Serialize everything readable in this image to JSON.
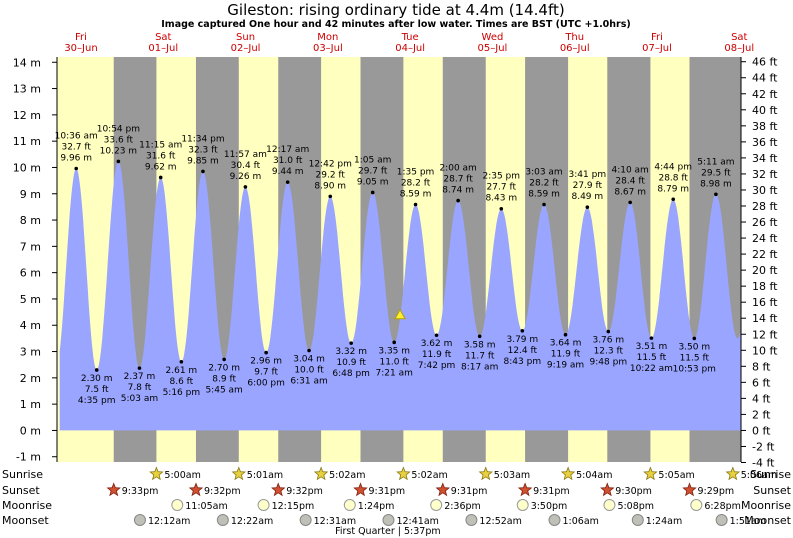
{
  "chart_data": {
    "type": "area",
    "title": "Gileston: rising  ordinary tide at 4.4m (14.4ft)",
    "subtitle": "Image captured One hour and 42 minutes after low water. Times are BST (UTC +1.0hrs)",
    "left_axis_unit": "m",
    "right_axis_unit": "ft",
    "ylim_m": [
      -1.2,
      14.2
    ],
    "left_ticks": [
      -1,
      0,
      1,
      2,
      3,
      4,
      5,
      6,
      7,
      8,
      9,
      10,
      11,
      12,
      13,
      14
    ],
    "right_ticks": [
      -4,
      -2,
      0,
      2,
      4,
      6,
      8,
      10,
      12,
      14,
      16,
      18,
      20,
      22,
      24,
      26,
      28,
      30,
      32,
      34,
      36,
      38,
      40,
      42,
      44,
      46
    ],
    "x_range_hours": [
      0,
      199.5
    ],
    "days": [
      {
        "dow": "Fri",
        "date": "30–Jun",
        "start_h": -5
      },
      {
        "dow": "Sat",
        "date": "01–Jul",
        "start_h": 19
      },
      {
        "dow": "Sun",
        "date": "02–Jul",
        "start_h": 43
      },
      {
        "dow": "Mon",
        "date": "03–Jul",
        "start_h": 67
      },
      {
        "dow": "Tue",
        "date": "04–Jul",
        "start_h": 91
      },
      {
        "dow": "Wed",
        "date": "05–Jul",
        "start_h": 115
      },
      {
        "dow": "Thu",
        "date": "06–Jul",
        "start_h": 139
      },
      {
        "dow": "Fri",
        "date": "07–Jul",
        "start_h": 163
      },
      {
        "dow": "Sat",
        "date": "08–Jul",
        "start_h": 187
      }
    ],
    "nights": [
      [
        16.55,
        29.0
      ],
      [
        40.53,
        53.02
      ],
      [
        64.53,
        77.03
      ],
      [
        88.52,
        101.03
      ],
      [
        112.52,
        125.05
      ],
      [
        136.52,
        149.07
      ],
      [
        160.5,
        173.08
      ],
      [
        184.48,
        199.5
      ]
    ],
    "tides": [
      {
        "type": "high",
        "h": 5.6,
        "time": "10:36 am",
        "ft": "32.7 ft",
        "m": "9.96 m",
        "v": 9.96
      },
      {
        "type": "low",
        "h": 11.58,
        "time": "4:35 pm",
        "ft": "7.5 ft",
        "m": "2.30 m",
        "v": 2.3
      },
      {
        "type": "high",
        "h": 17.9,
        "time": "10:54 pm",
        "ft": "33.6 ft",
        "m": "10.23 m",
        "v": 10.23
      },
      {
        "type": "low",
        "h": 24.05,
        "time": "5:03 am",
        "ft": "7.8 ft",
        "m": "2.37 m",
        "v": 2.37
      },
      {
        "type": "high",
        "h": 30.25,
        "time": "11:15 am",
        "ft": "31.6 ft",
        "m": "9.62 m",
        "v": 9.62
      },
      {
        "type": "low",
        "h": 36.27,
        "time": "5:16 pm",
        "ft": "8.6 ft",
        "m": "2.61 m",
        "v": 2.61
      },
      {
        "type": "high",
        "h": 42.57,
        "time": "11:34 pm",
        "ft": "32.3 ft",
        "m": "9.85 m",
        "v": 9.85
      },
      {
        "type": "low",
        "h": 48.75,
        "time": "5:45 am",
        "ft": "8.9 ft",
        "m": "2.70 m",
        "v": 2.7
      },
      {
        "type": "high",
        "h": 54.95,
        "time": "11:57 am",
        "ft": "30.4 ft",
        "m": "9.26 m",
        "v": 9.26
      },
      {
        "type": "low",
        "h": 61.0,
        "time": "6:00 pm",
        "ft": "9.7 ft",
        "m": "2.96 m",
        "v": 2.96
      },
      {
        "type": "high",
        "h": 67.28,
        "time": "12:17 am",
        "ft": "31.0 ft",
        "m": "9.44 m",
        "v": 9.44
      },
      {
        "type": "low",
        "h": 73.52,
        "time": "6:31 am",
        "ft": "10.0 ft",
        "m": "3.04 m",
        "v": 3.04
      },
      {
        "type": "high",
        "h": 79.7,
        "time": "12:42 pm",
        "ft": "29.2 ft",
        "m": "8.90 m",
        "v": 8.9
      },
      {
        "type": "low",
        "h": 85.8,
        "time": "6:48 pm",
        "ft": "10.9 ft",
        "m": "3.32 m",
        "v": 3.32
      },
      {
        "type": "high",
        "h": 92.08,
        "time": "1:05 am",
        "ft": "29.7 ft",
        "m": "9.05 m",
        "v": 9.05
      },
      {
        "type": "low",
        "h": 98.35,
        "time": "7:21 am",
        "ft": "11.0 ft",
        "m": "3.35 m",
        "v": 3.35
      },
      {
        "type": "high",
        "h": 104.58,
        "time": "1:35 pm",
        "ft": "28.2 ft",
        "m": "8.59 m",
        "v": 8.59
      },
      {
        "type": "low",
        "h": 110.7,
        "time": "7:42 pm",
        "ft": "11.9 ft",
        "m": "3.62 m",
        "v": 3.62
      },
      {
        "type": "high",
        "h": 117.0,
        "time": "2:00 am",
        "ft": "28.7 ft",
        "m": "8.74 m",
        "v": 8.74
      },
      {
        "type": "low",
        "h": 123.28,
        "time": "8:17 am",
        "ft": "11.7 ft",
        "m": "3.58 m",
        "v": 3.58
      },
      {
        "type": "high",
        "h": 129.58,
        "time": "2:35 pm",
        "ft": "27.7 ft",
        "m": "8.43 m",
        "v": 8.43
      },
      {
        "type": "low",
        "h": 135.72,
        "time": "8:43 pm",
        "ft": "12.4 ft",
        "m": "3.79 m",
        "v": 3.79
      },
      {
        "type": "high",
        "h": 142.05,
        "time": "3:03 am",
        "ft": "28.2 ft",
        "m": "8.59 m",
        "v": 8.59
      },
      {
        "type": "low",
        "h": 148.32,
        "time": "9:19 am",
        "ft": "11.9 ft",
        "m": "3.64 m",
        "v": 3.64
      },
      {
        "type": "high",
        "h": 154.68,
        "time": "3:41 pm",
        "ft": "27.9 ft",
        "m": "8.49 m",
        "v": 8.49
      },
      {
        "type": "low",
        "h": 160.8,
        "time": "9:48 pm",
        "ft": "12.3 ft",
        "m": "3.76 m",
        "v": 3.76
      },
      {
        "type": "high",
        "h": 167.17,
        "time": "4:10 am",
        "ft": "28.4 ft",
        "m": "8.67 m",
        "v": 8.67
      },
      {
        "type": "low",
        "h": 173.37,
        "time": "10:22 am",
        "ft": "11.5 ft",
        "m": "3.51 m",
        "v": 3.51
      },
      {
        "type": "high",
        "h": 179.73,
        "time": "4:44 pm",
        "ft": "28.8 ft",
        "m": "8.79 m",
        "v": 8.79
      },
      {
        "type": "low",
        "h": 185.88,
        "time": "10:53 pm",
        "ft": "11.5 ft",
        "m": "3.50 m",
        "v": 3.5
      },
      {
        "type": "high",
        "h": 192.18,
        "time": "5:11 am",
        "ft": "29.5 ft",
        "m": "8.98 m",
        "v": 8.98
      }
    ],
    "current": {
      "h": 100.05,
      "v": 4.4
    }
  },
  "events": {
    "labels": [
      "Sunrise",
      "Sunset",
      "Moonrise",
      "Moonset"
    ],
    "sunrise": [
      {
        "h": 29.0,
        "time": "5:00am"
      },
      {
        "h": 53.02,
        "time": "5:01am"
      },
      {
        "h": 77.03,
        "time": "5:02am"
      },
      {
        "h": 101.03,
        "time": "5:02am"
      },
      {
        "h": 125.05,
        "time": "5:03am"
      },
      {
        "h": 149.07,
        "time": "5:04am"
      },
      {
        "h": 173.08,
        "time": "5:05am"
      },
      {
        "h": 197.1,
        "time": "5:06am"
      }
    ],
    "sunset": [
      {
        "h": 16.55,
        "time": "9:33pm"
      },
      {
        "h": 40.53,
        "time": "9:32pm"
      },
      {
        "h": 64.53,
        "time": "9:32pm"
      },
      {
        "h": 88.52,
        "time": "9:31pm"
      },
      {
        "h": 112.52,
        "time": "9:31pm"
      },
      {
        "h": 136.52,
        "time": "9:31pm"
      },
      {
        "h": 160.5,
        "time": "9:30pm"
      },
      {
        "h": 184.48,
        "time": "9:29pm"
      }
    ],
    "moonrise": [
      {
        "h": 35.08,
        "time": "11:05am"
      },
      {
        "h": 60.25,
        "time": "12:15pm"
      },
      {
        "h": 85.4,
        "time": "1:24pm"
      },
      {
        "h": 110.6,
        "time": "2:36pm"
      },
      {
        "h": 135.83,
        "time": "3:50pm"
      },
      {
        "h": 161.13,
        "time": "5:08pm"
      },
      {
        "h": 186.47,
        "time": "6:28pm"
      }
    ],
    "moonset": [
      {
        "h": 24.2,
        "time": "12:12am"
      },
      {
        "h": 48.37,
        "time": "12:22am"
      },
      {
        "h": 72.52,
        "time": "12:31am"
      },
      {
        "h": 96.68,
        "time": "12:41am"
      },
      {
        "h": 120.87,
        "time": "12:52am"
      },
      {
        "h": 145.1,
        "time": "1:06am"
      },
      {
        "h": 169.4,
        "time": "1:24am"
      },
      {
        "h": 193.85,
        "time": "1:51am"
      }
    ],
    "moon_phase": {
      "h": 96.5,
      "text": "First Quarter | 5:37pm"
    }
  },
  "colors": {
    "day": "#ffffc0",
    "night": "#999999",
    "water": "#9aa5ff",
    "day_label": "#cc0000",
    "title": "#000000"
  }
}
